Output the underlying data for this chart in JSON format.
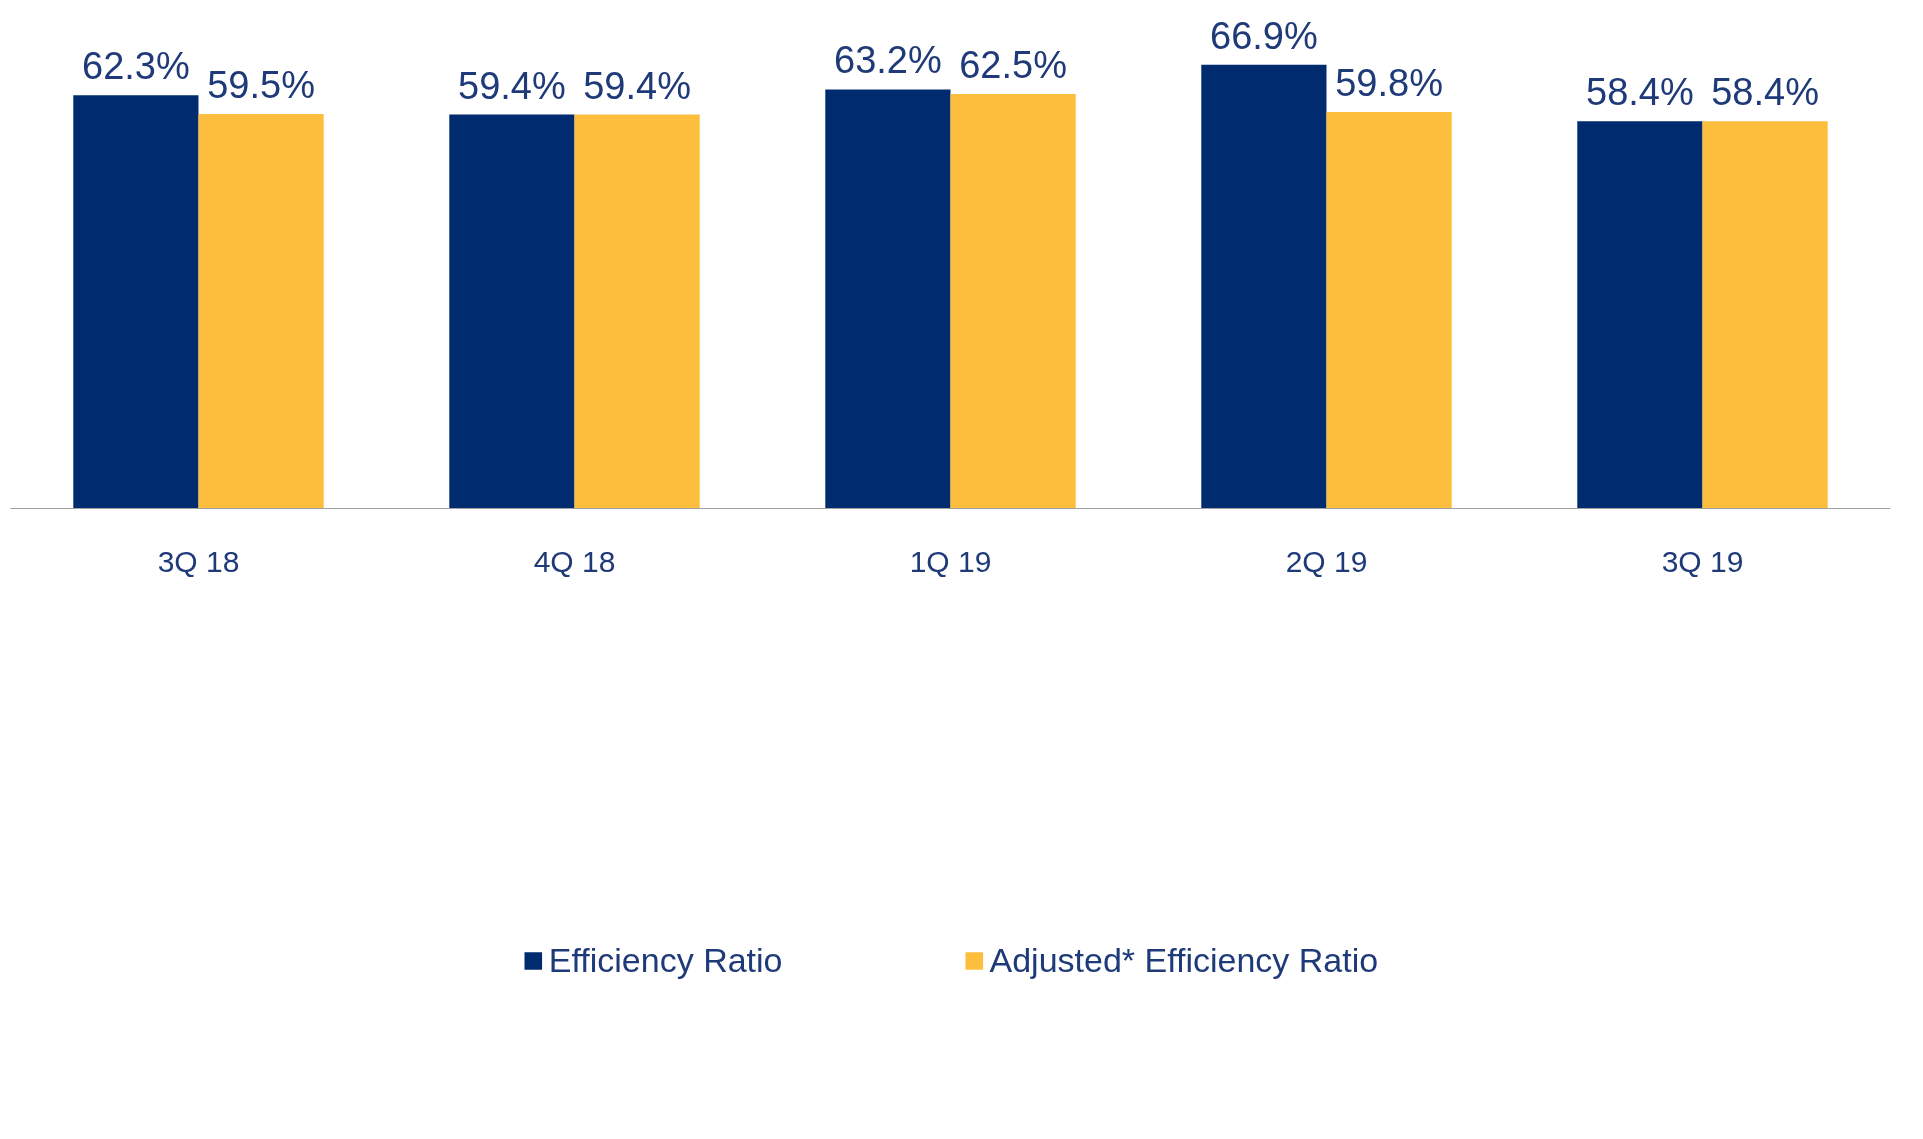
{
  "chart_data": {
    "type": "bar",
    "categories": [
      "3Q 18",
      "4Q 18",
      "1Q 19",
      "2Q 19",
      "3Q 19"
    ],
    "series": [
      {
        "name": "Efficiency Ratio",
        "color": "#002b6e",
        "values": [
          62.3,
          59.4,
          63.2,
          66.9,
          58.4
        ],
        "value_labels": [
          "62.3%",
          "59.4%",
          "63.2%",
          "66.9%",
          "58.4%"
        ]
      },
      {
        "name": "Adjusted* Efficiency Ratio",
        "color": "#fdbe3e",
        "values": [
          59.5,
          59.4,
          62.5,
          59.8,
          58.4
        ],
        "value_labels": [
          "59.5%",
          "59.4%",
          "62.5%",
          "59.8%",
          "58.4%"
        ]
      }
    ],
    "grid": false,
    "legend": "bottom"
  }
}
